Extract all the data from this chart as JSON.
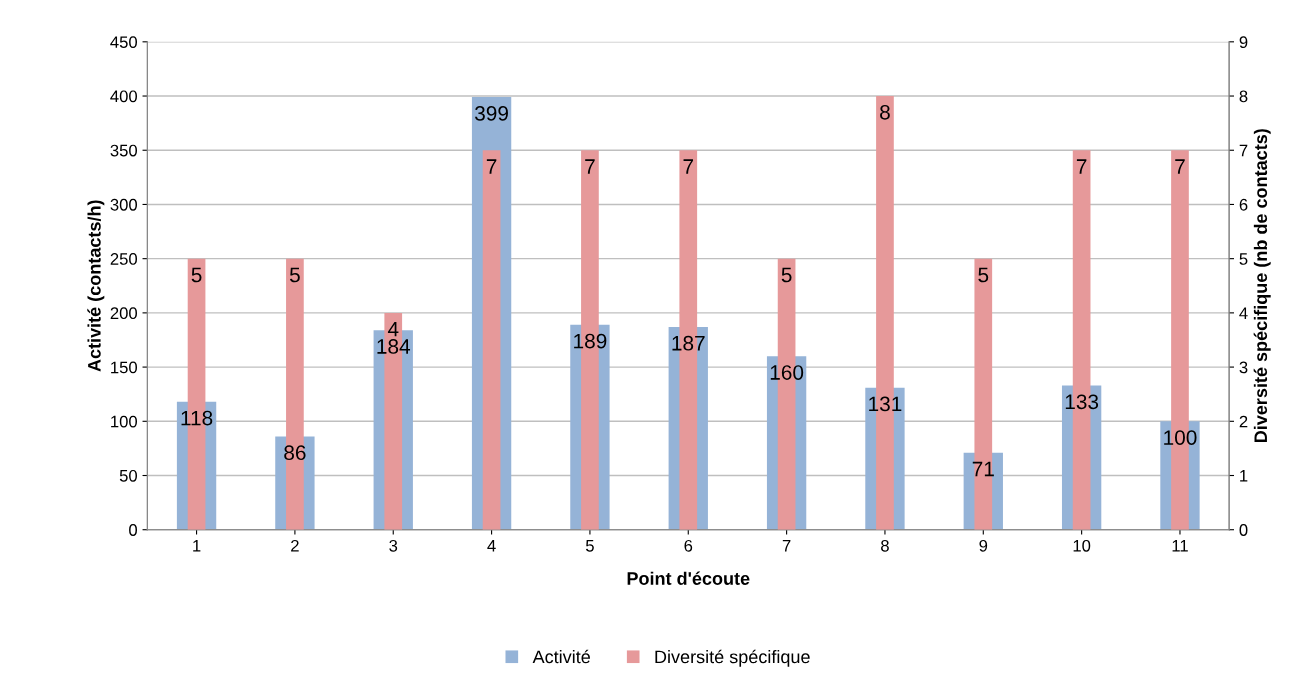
{
  "chart_data": {
    "type": "bar",
    "xlabel": "Point d'écoute",
    "ylabel": "Activité (contacts/h)",
    "y2label": "Diversité spécifique (nb de contacts)",
    "categories": [
      "1",
      "2",
      "3",
      "4",
      "5",
      "6",
      "7",
      "8",
      "9",
      "10",
      "11"
    ],
    "series": [
      {
        "name": "Activité",
        "color": "#95b3d7",
        "values": [
          118,
          86,
          184,
          399,
          189,
          187,
          160,
          131,
          71,
          133,
          100
        ]
      },
      {
        "name": "Diversité spécifique",
        "color": "#e6999a",
        "axis": "y2",
        "values": [
          5,
          5,
          4,
          7,
          7,
          7,
          5,
          8,
          5,
          7,
          7
        ]
      }
    ],
    "ylim": [
      0,
      450
    ],
    "yticks": [
      0,
      50,
      100,
      150,
      200,
      250,
      300,
      350,
      400,
      450
    ],
    "y2lim": [
      0,
      9
    ],
    "y2ticks": [
      0,
      1,
      2,
      3,
      4,
      5,
      6,
      7,
      8,
      9
    ],
    "data_labels": true,
    "grid": "y",
    "legend": "bottom"
  }
}
